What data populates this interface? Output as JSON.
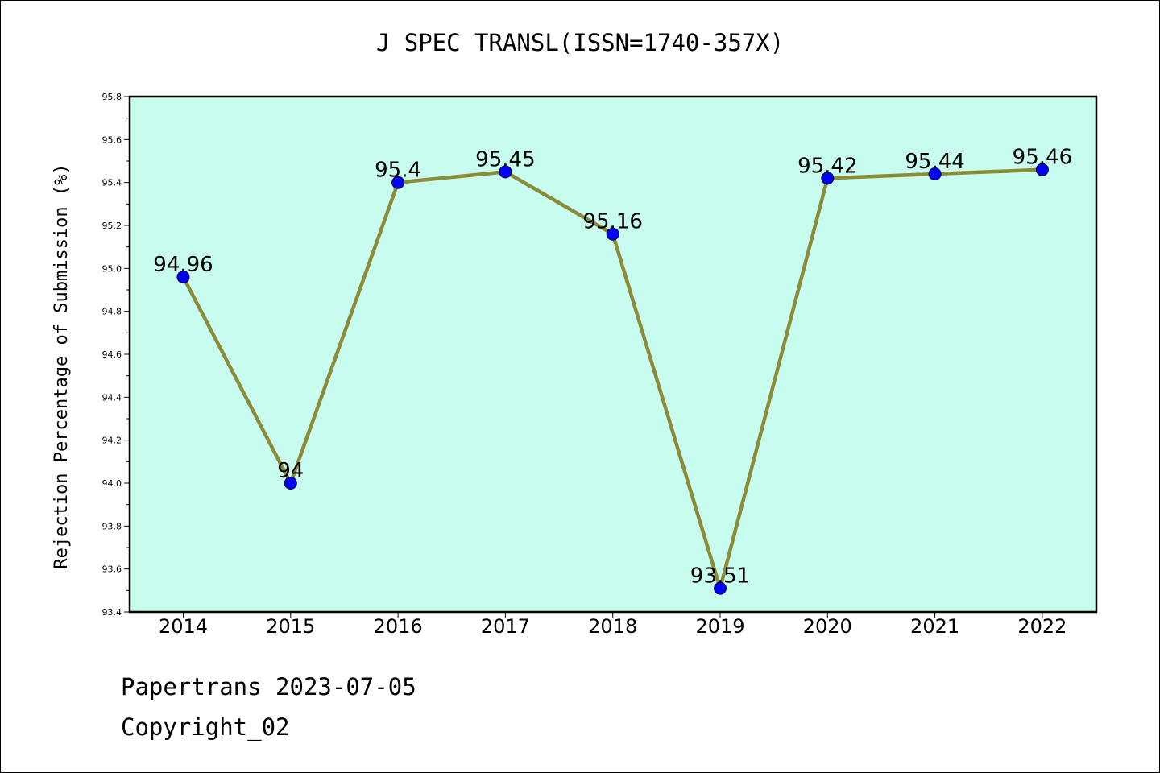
{
  "chart_data": {
    "type": "line",
    "title": "J SPEC TRANSL(ISSN=1740-357X)",
    "xlabel": "",
    "ylabel": "Rejection Percentage of Submission (%)",
    "categories": [
      "2014",
      "2015",
      "2016",
      "2017",
      "2018",
      "2019",
      "2020",
      "2021",
      "2022"
    ],
    "series": [
      {
        "values": [
          94.96,
          94.0,
          95.4,
          95.45,
          95.16,
          93.51,
          95.42,
          95.44,
          95.46
        ],
        "labels": [
          "94.96",
          "94",
          "95.4",
          "95.45",
          "95.16",
          "93.51",
          "95.42",
          "95.44",
          "95.46"
        ],
        "line_color": "#8b8b3a",
        "marker_color": "#0000ff"
      }
    ],
    "ylim": [
      93.4,
      95.8
    ],
    "yticks": [
      "93.4",
      "93.6",
      "93.8",
      "94.0",
      "94.2",
      "94.4",
      "94.6",
      "94.8",
      "95.0",
      "95.2",
      "95.4",
      "95.6",
      "95.8"
    ],
    "grid": false,
    "plot_background": "#c8fcee"
  },
  "footer": {
    "line1": "Papertrans 2023-07-05",
    "line2": "Copyright_02"
  }
}
